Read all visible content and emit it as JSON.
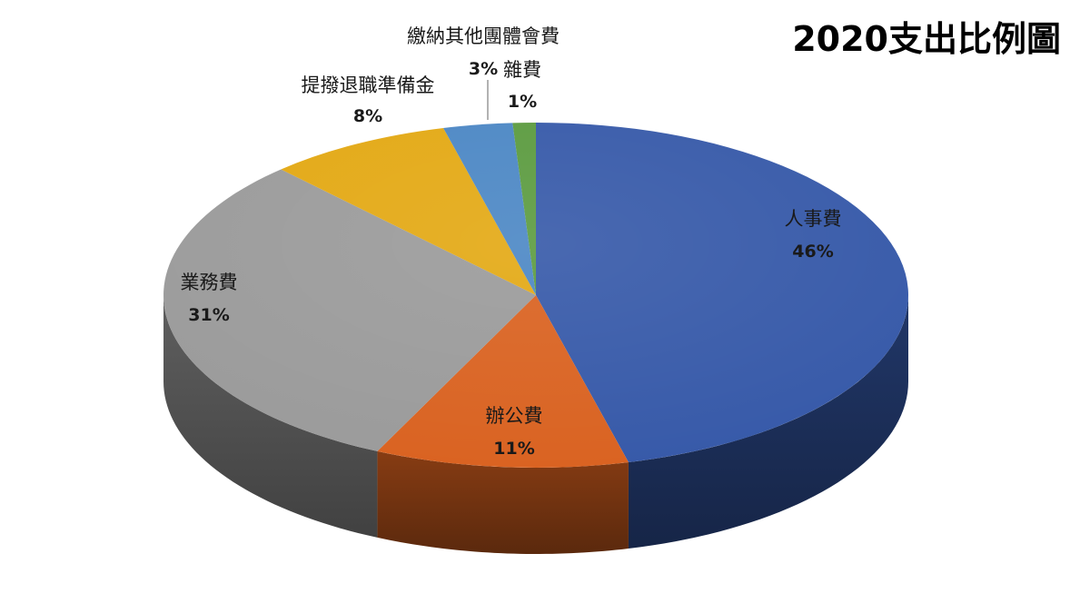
{
  "chart_data": {
    "type": "pie",
    "title": "2020支出比例圖",
    "slices": [
      {
        "name": "人事費",
        "value": 46,
        "label": "46%",
        "color": "#3558a8"
      },
      {
        "name": "辦公費",
        "value": 11,
        "label": "11%",
        "color": "#d9611f"
      },
      {
        "name": "業務費",
        "value": 31,
        "label": "31%",
        "color": "#9a9a9a"
      },
      {
        "name": "提撥退職準備金",
        "value": 8,
        "label": "8%",
        "color": "#e3a812"
      },
      {
        "name": "繳納其他團體會費",
        "value": 3,
        "label": "3%",
        "color": "#4a86c4"
      },
      {
        "name": "雜費",
        "value": 1,
        "label": "1%",
        "color": "#5a9a3e"
      }
    ]
  }
}
